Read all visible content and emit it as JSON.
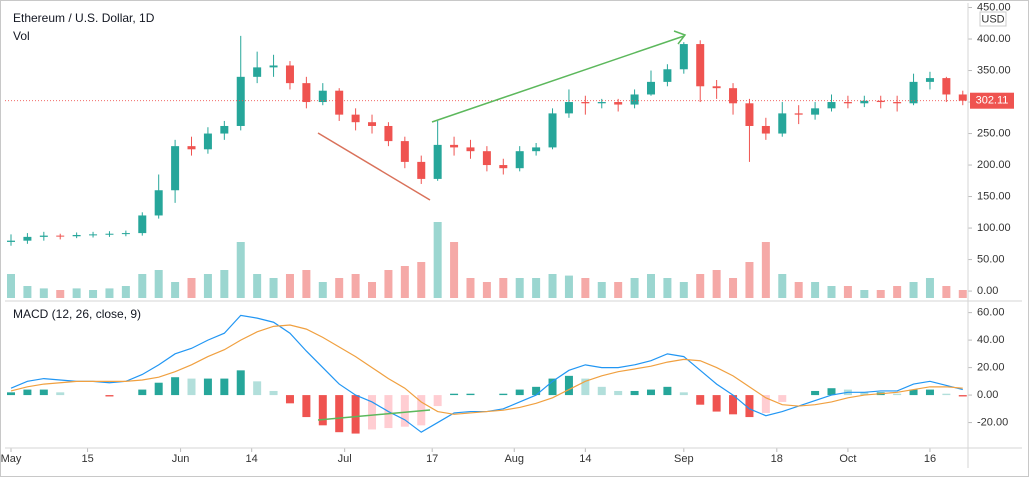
{
  "chart_data": [
    {
      "type": "candlestick",
      "title": "Ethereum / U.S. Dollar, 1D",
      "volume_label": "Vol",
      "y_unit": "USD",
      "up_color": "#26a69a",
      "down_color": "#ef5350",
      "volume_up_color": "#9bd6d0",
      "volume_down_color": "#f5a9a7",
      "x": [
        "May 1",
        "May 4",
        "May 7",
        "May 10",
        "May 13",
        "May 16",
        "May 19",
        "May 22",
        "May 25",
        "May 28",
        "May 31",
        "Jun 3",
        "Jun 6",
        "Jun 9",
        "Jun 12",
        "Jun 15",
        "Jun 18",
        "Jun 21",
        "Jun 24",
        "Jun 27",
        "Jun 30",
        "Jul 3",
        "Jul 6",
        "Jul 9",
        "Jul 12",
        "Jul 15",
        "Jul 18",
        "Jul 21",
        "Jul 24",
        "Jul 27",
        "Jul 30",
        "Aug 2",
        "Aug 5",
        "Aug 8",
        "Aug 11",
        "Aug 14",
        "Aug 17",
        "Aug 20",
        "Aug 23",
        "Aug 26",
        "Aug 29",
        "Sep 1",
        "Sep 4",
        "Sep 7",
        "Sep 10",
        "Sep 13",
        "Sep 16",
        "Sep 19",
        "Sep 22",
        "Sep 25",
        "Sep 28",
        "Oct 1",
        "Oct 4",
        "Oct 7",
        "Oct 10",
        "Oct 13",
        "Oct 16",
        "Oct 19",
        "Oct 22"
      ],
      "open": [
        78,
        80,
        86,
        88,
        87,
        89,
        90,
        91,
        92,
        120,
        160,
        230,
        225,
        250,
        262,
        340,
        355,
        358,
        330,
        300,
        318,
        280,
        268,
        262,
        238,
        205,
        178,
        232,
        228,
        222,
        200,
        195,
        222,
        228,
        282,
        300,
        298,
        300,
        296,
        312,
        332,
        352,
        392,
        325,
        322,
        298,
        262,
        250,
        282,
        280,
        290,
        300,
        298,
        302,
        300,
        298,
        332,
        338,
        312
      ],
      "high": [
        90,
        92,
        94,
        91,
        93,
        94,
        95,
        96,
        125,
        185,
        240,
        245,
        260,
        270,
        405,
        380,
        375,
        365,
        340,
        330,
        322,
        290,
        280,
        268,
        245,
        215,
        270,
        245,
        240,
        230,
        210,
        230,
        235,
        290,
        320,
        310,
        305,
        305,
        320,
        350,
        360,
        395,
        398,
        335,
        330,
        305,
        275,
        300,
        295,
        300,
        312,
        310,
        310,
        310,
        310,
        345,
        348,
        340,
        318
      ],
      "low": [
        72,
        75,
        80,
        82,
        84,
        85,
        86,
        87,
        88,
        115,
        140,
        215,
        218,
        240,
        255,
        330,
        340,
        320,
        290,
        295,
        270,
        255,
        250,
        230,
        195,
        170,
        175,
        215,
        210,
        190,
        185,
        190,
        215,
        225,
        275,
        280,
        290,
        285,
        290,
        310,
        325,
        345,
        300,
        305,
        280,
        205,
        240,
        245,
        265,
        272,
        285,
        290,
        292,
        290,
        285,
        295,
        320,
        300,
        295
      ],
      "close": [
        80,
        86,
        88,
        87,
        89,
        90,
        91,
        92,
        120,
        160,
        230,
        225,
        250,
        262,
        340,
        355,
        358,
        330,
        300,
        318,
        280,
        268,
        262,
        238,
        205,
        178,
        232,
        228,
        222,
        200,
        195,
        222,
        228,
        282,
        300,
        298,
        300,
        296,
        312,
        332,
        352,
        392,
        325,
        322,
        298,
        262,
        250,
        282,
        280,
        290,
        300,
        298,
        302,
        300,
        298,
        332,
        338,
        312,
        302.11
      ],
      "volume": [
        30,
        15,
        12,
        10,
        12,
        10,
        12,
        15,
        30,
        35,
        20,
        25,
        30,
        35,
        70,
        30,
        25,
        30,
        35,
        20,
        25,
        30,
        20,
        35,
        40,
        45,
        95,
        70,
        25,
        20,
        25,
        25,
        25,
        30,
        28,
        25,
        20,
        20,
        25,
        30,
        25,
        20,
        30,
        35,
        25,
        45,
        70,
        30,
        20,
        20,
        15,
        15,
        10,
        10,
        15,
        20,
        25,
        15,
        10
      ],
      "ylim": [
        -11,
        454
      ],
      "yticks": [
        {
          "value": 0,
          "label": "0.00"
        },
        {
          "value": 50,
          "label": "50.00"
        },
        {
          "value": 100,
          "label": "100.00"
        },
        {
          "value": 150,
          "label": "150.00"
        },
        {
          "value": 200,
          "label": "200.00"
        },
        {
          "value": 250,
          "label": "250.00"
        },
        {
          "value": 300,
          "label": "300.00"
        },
        {
          "value": 350,
          "label": "350.00"
        },
        {
          "value": 400,
          "label": "400.00"
        },
        {
          "value": 450,
          "label": "450.00"
        }
      ]
    },
    {
      "type": "macd",
      "title": "MACD (12, 26, close, 9)",
      "series": [
        {
          "color": "#2196f3",
          "values": [
            5,
            10,
            12,
            11,
            10,
            10,
            9,
            10,
            15,
            22,
            30,
            34,
            40,
            45,
            58,
            56,
            53,
            45,
            32,
            20,
            8,
            0,
            -5,
            -12,
            -18,
            -27,
            -20,
            -13,
            -12,
            -12,
            -10,
            -5,
            0,
            10,
            18,
            22,
            20,
            20,
            22,
            25,
            30,
            28,
            18,
            8,
            0,
            -10,
            -15,
            -12,
            -8,
            -4,
            0,
            2,
            2,
            3,
            3,
            8,
            10,
            7,
            4
          ]
        },
        {
          "color": "#f0a040",
          "values": [
            3,
            6,
            8,
            9,
            10,
            10,
            10,
            10,
            11,
            13,
            17,
            22,
            28,
            33,
            40,
            46,
            50,
            51,
            48,
            42,
            35,
            28,
            20,
            12,
            5,
            -5,
            -12,
            -14,
            -13,
            -12,
            -11,
            -9,
            -6,
            -2,
            4,
            10,
            14,
            17,
            19,
            21,
            24,
            26,
            25,
            20,
            14,
            6,
            -2,
            -7,
            -8,
            -7,
            -5,
            -2,
            0,
            1,
            2,
            4,
            6,
            6,
            5
          ]
        }
      ],
      "histogram": [
        2,
        4,
        4,
        2,
        0,
        0,
        -1,
        0,
        4,
        9,
        13,
        12,
        12,
        12,
        18,
        10,
        3,
        -6,
        -16,
        -22,
        -27,
        -28,
        -25,
        -24,
        -23,
        -22,
        -8,
        1,
        1,
        0,
        1,
        4,
        6,
        12,
        14,
        12,
        6,
        3,
        3,
        4,
        6,
        2,
        -7,
        -12,
        -14,
        -16,
        -13,
        -5,
        0,
        3,
        5,
        4,
        2,
        2,
        1,
        4,
        4,
        1,
        -1
      ],
      "ylim": [
        -38.5,
        67
      ],
      "yticks": [
        {
          "value": -20,
          "label": "-20.00"
        },
        {
          "value": 0,
          "label": "0.00"
        },
        {
          "value": 20,
          "label": "20.00"
        },
        {
          "value": 40,
          "label": "40.00"
        },
        {
          "value": 60,
          "label": "60.00"
        }
      ],
      "xticks": [
        {
          "value": "May 1",
          "label": "May"
        },
        {
          "value": "May 15",
          "label": "15"
        },
        {
          "value": "Jun 1",
          "label": "Jun"
        },
        {
          "value": "Jun 14",
          "label": "14"
        },
        {
          "value": "Jul 1",
          "label": "Jul"
        },
        {
          "value": "Jul 17",
          "label": "17"
        },
        {
          "value": "Aug 1",
          "label": "Aug"
        },
        {
          "value": "Aug 14",
          "label": "14"
        },
        {
          "value": "Sep 1",
          "label": "Sep"
        },
        {
          "value": "Sep 18",
          "label": "18"
        },
        {
          "value": "Oct 1",
          "label": "Oct"
        },
        {
          "value": "Oct 16",
          "label": "16"
        }
      ]
    }
  ]
}
